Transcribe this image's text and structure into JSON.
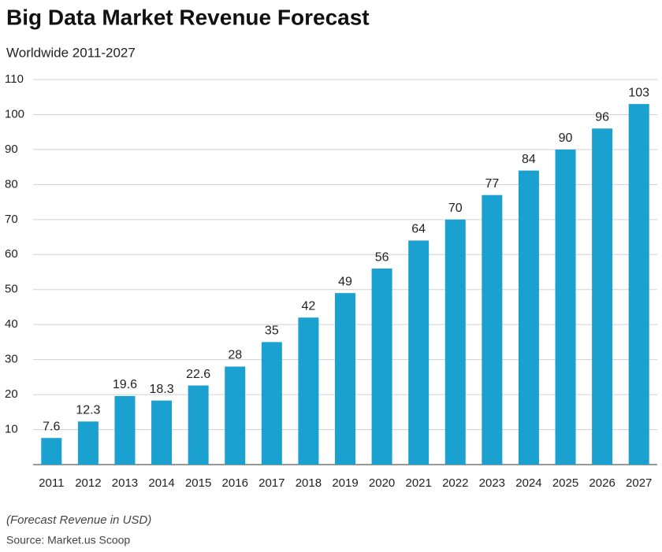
{
  "chart_data": {
    "type": "bar",
    "title": "Big Data Market Revenue Forecast",
    "subtitle": "Worldwide 2011-2027",
    "categories": [
      "2011",
      "2012",
      "2013",
      "2014",
      "2015",
      "2016",
      "2017",
      "2018",
      "2019",
      "2020",
      "2021",
      "2022",
      "2023",
      "2024",
      "2025",
      "2026",
      "2027"
    ],
    "values": [
      7.6,
      12.3,
      19.6,
      18.3,
      22.6,
      28,
      35,
      42,
      49,
      56,
      64,
      70,
      77,
      84,
      90,
      96,
      103
    ],
    "color": "#1ba1cf",
    "ylim": [
      0,
      110
    ],
    "yticks": [
      10,
      20,
      30,
      40,
      50,
      60,
      70,
      80,
      90,
      100,
      110
    ],
    "grid": true,
    "note": "(Forecast Revenue in USD)",
    "source": "Source: Market.us Scoop"
  }
}
